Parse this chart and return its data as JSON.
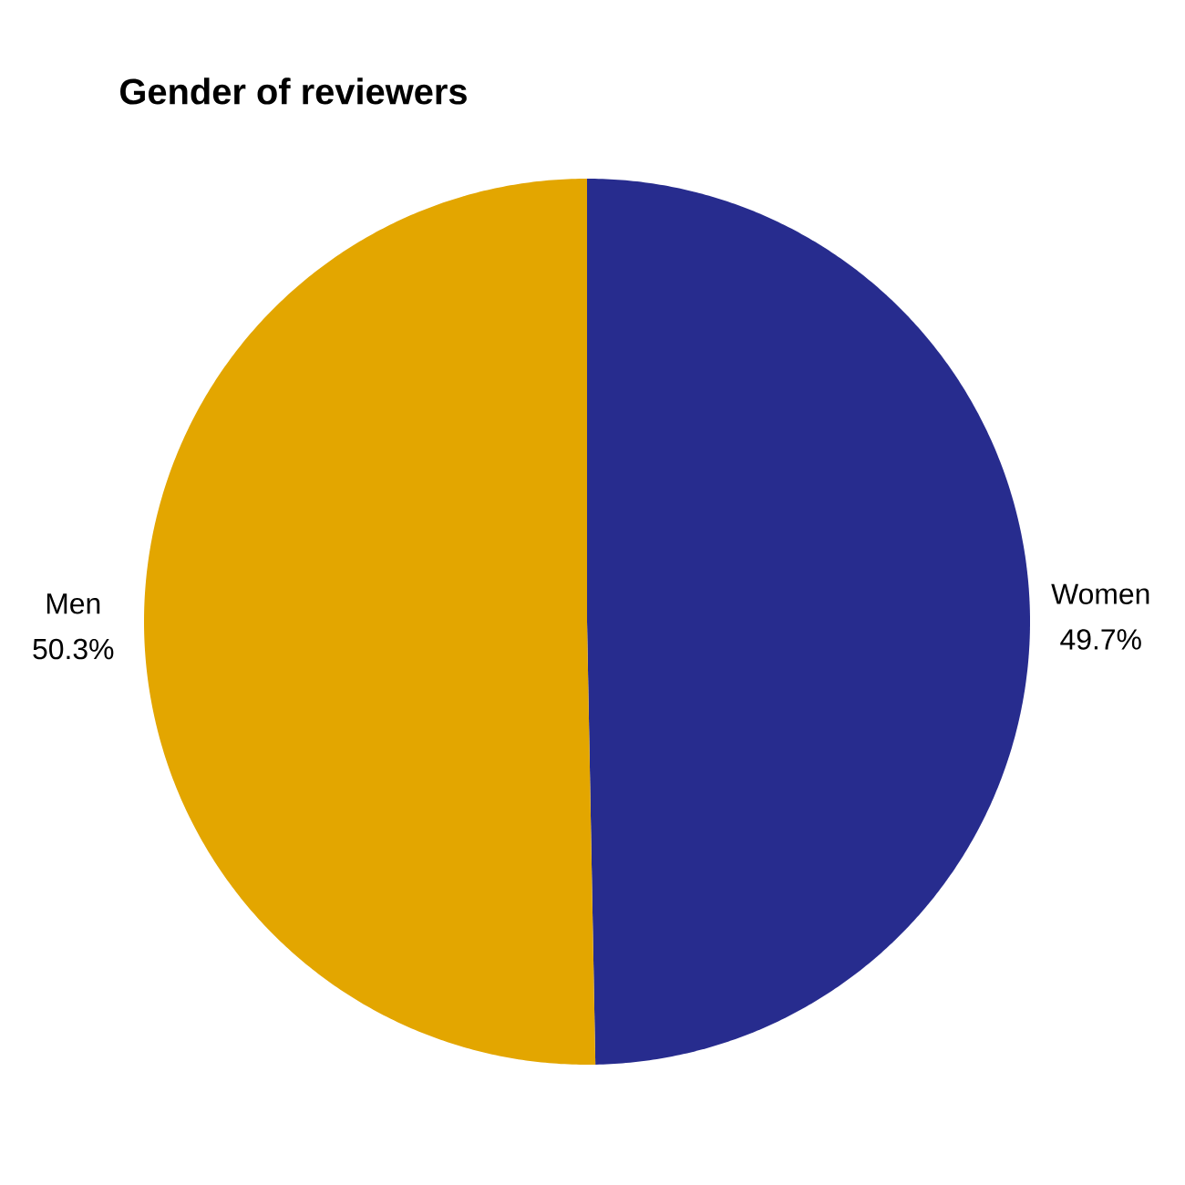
{
  "chart_data": {
    "type": "pie",
    "title": "Gender of reviewers",
    "categories": [
      "Women",
      "Men"
    ],
    "values": [
      49.7,
      50.3
    ],
    "colors": [
      "#272c8e",
      "#e3a600"
    ],
    "value_labels": [
      "49.7%",
      "50.3%"
    ]
  }
}
